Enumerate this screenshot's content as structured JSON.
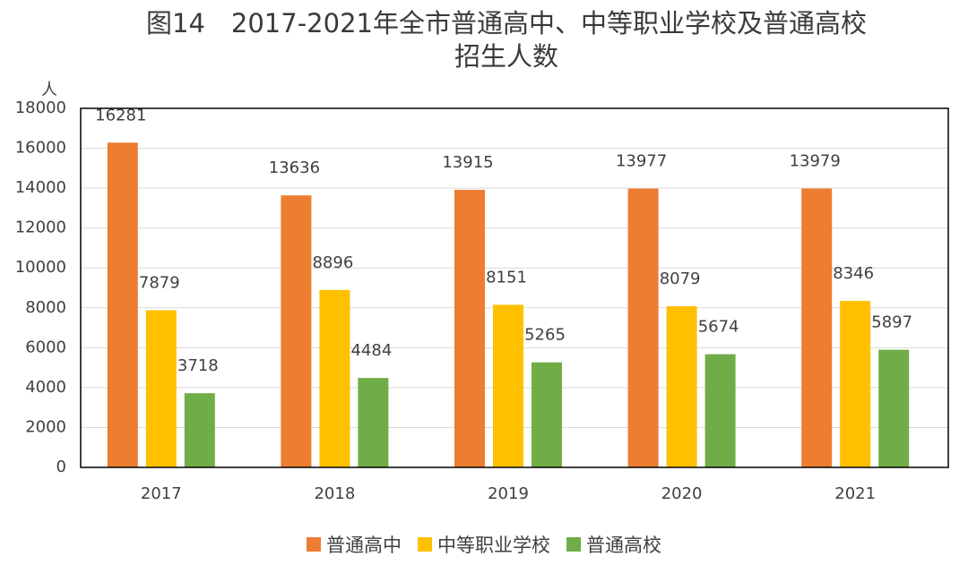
{
  "chart_data": {
    "type": "bar",
    "title": [
      "图14　2017-2021年全市普通高中、中等职业学校及普通高校",
      "招生人数"
    ],
    "y_label": "人",
    "categories": [
      "2017",
      "2018",
      "2019",
      "2020",
      "2021"
    ],
    "series": [
      {
        "name": "普通高中",
        "color": "#ED7D31",
        "values": [
          16281,
          13636,
          13915,
          13977,
          13979
        ]
      },
      {
        "name": "中等职业学校",
        "color": "#FFC000",
        "values": [
          7879,
          8896,
          8151,
          8079,
          8346
        ]
      },
      {
        "name": "普通高校",
        "color": "#70AD47",
        "values": [
          3718,
          4484,
          5265,
          5674,
          5897
        ]
      }
    ],
    "ylim": [
      0,
      18000
    ],
    "yticks": [
      0,
      2000,
      4000,
      6000,
      8000,
      10000,
      12000,
      14000,
      16000,
      18000
    ],
    "grid": true,
    "legend": "bottom"
  }
}
